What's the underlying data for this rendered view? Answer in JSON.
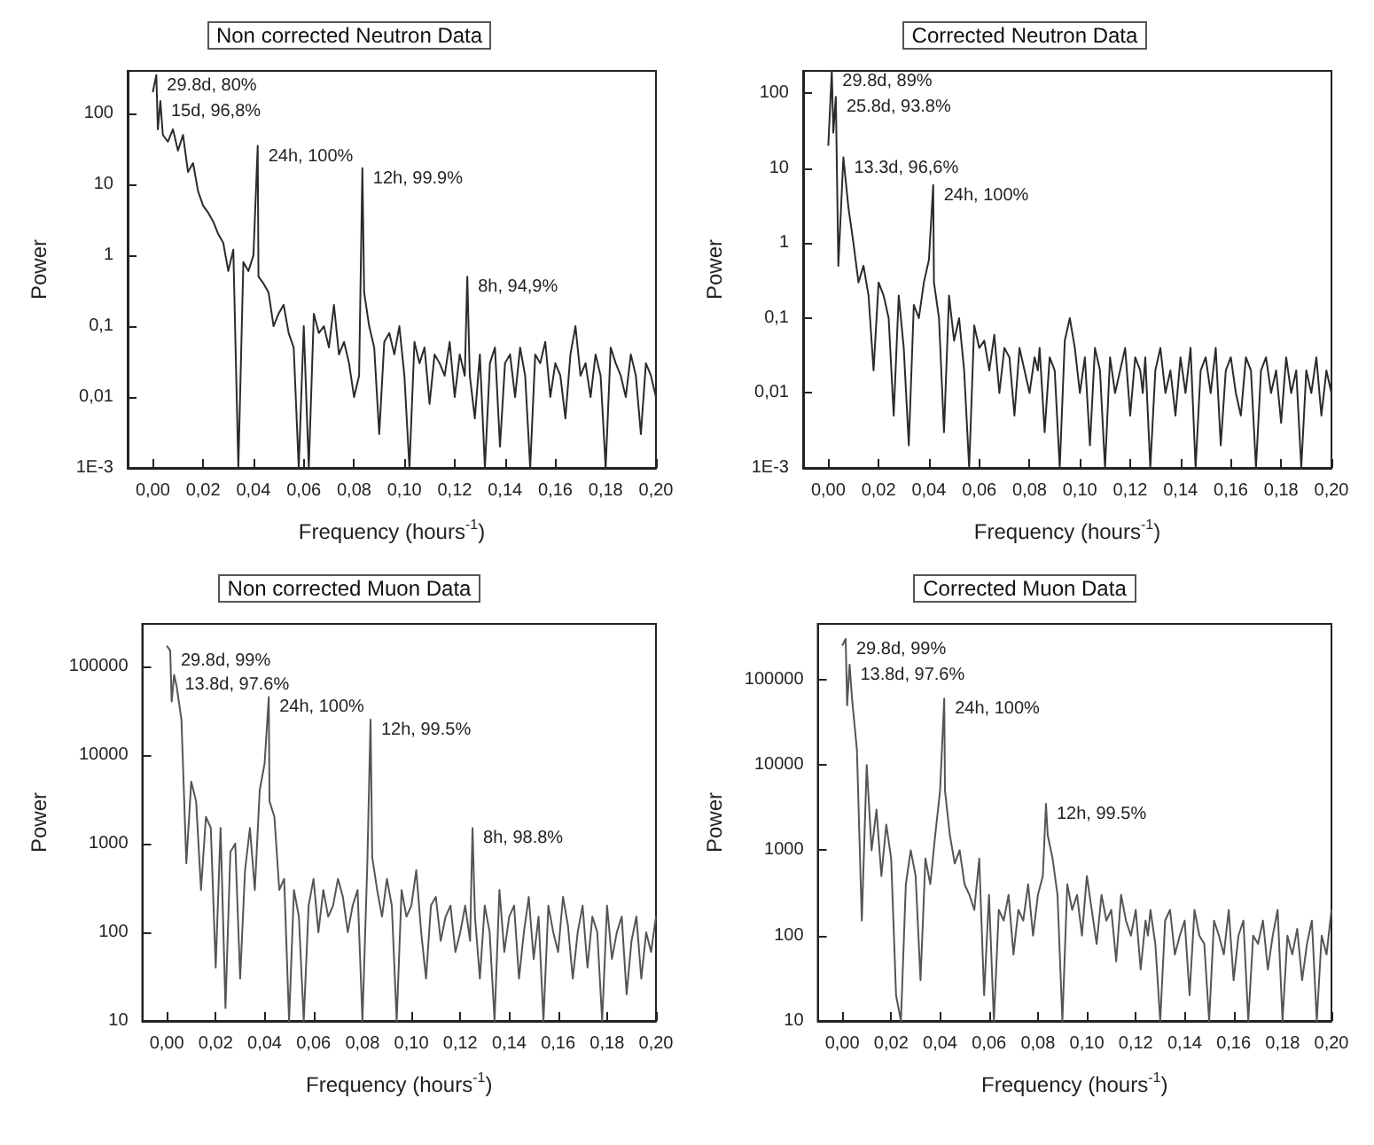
{
  "chart_data": [
    {
      "type": "line",
      "title": "Non corrected Neutron Data",
      "xlabel": "Frequency (hours$^{-1}$)",
      "ylabel": "Power",
      "log": "y",
      "marker": "none",
      "line_style": "solid",
      "grid": false,
      "xlim": [
        -0.01,
        0.2
      ],
      "ylim": [
        0.001,
        400
      ],
      "xticks": [
        {
          "value": 0,
          "label": "0,00"
        },
        {
          "value": 0.02,
          "label": "0,02"
        },
        {
          "value": 0.04,
          "label": "0,04"
        },
        {
          "value": 0.06,
          "label": "0,06"
        },
        {
          "value": 0.08,
          "label": "0,08"
        },
        {
          "value": 0.1,
          "label": "0,10"
        },
        {
          "value": 0.12,
          "label": "0,12"
        },
        {
          "value": 0.14,
          "label": "0,14"
        },
        {
          "value": 0.16,
          "label": "0,16"
        },
        {
          "value": 0.18,
          "label": "0,18"
        },
        {
          "value": 0.2,
          "label": "0,20"
        }
      ],
      "yticks": [
        {
          "value": 0.001,
          "label": "1E-3"
        },
        {
          "value": 0.01,
          "label": "0,01"
        },
        {
          "value": 0.1,
          "label": "0,1"
        },
        1,
        10,
        100
      ],
      "annotations": [
        {
          "text": "29.8d, 80%",
          "x": 0.0014,
          "y": 350
        },
        {
          "text": "15d, 96,8%",
          "x": 0.003,
          "y": 150
        },
        {
          "text": "24h, 100%",
          "x": 0.0417,
          "y": 35
        },
        {
          "text": "12h, 99.9%",
          "x": 0.0833,
          "y": 17
        },
        {
          "text": "8h, 94,9%",
          "x": 0.125,
          "y": 0.5
        }
      ],
      "x": [
        0,
        0.0014,
        0.002,
        0.003,
        0.004,
        0.006,
        0.008,
        0.01,
        0.012,
        0.014,
        0.016,
        0.018,
        0.02,
        0.022,
        0.024,
        0.026,
        0.028,
        0.03,
        0.032,
        0.034,
        0.036,
        0.038,
        0.04,
        0.0417,
        0.042,
        0.044,
        0.046,
        0.048,
        0.05,
        0.052,
        0.054,
        0.056,
        0.058,
        0.06,
        0.062,
        0.064,
        0.066,
        0.068,
        0.07,
        0.072,
        0.074,
        0.076,
        0.078,
        0.08,
        0.082,
        0.0833,
        0.084,
        0.086,
        0.088,
        0.09,
        0.092,
        0.094,
        0.096,
        0.098,
        0.1,
        0.102,
        0.104,
        0.106,
        0.108,
        0.11,
        0.112,
        0.114,
        0.116,
        0.118,
        0.12,
        0.122,
        0.124,
        0.125,
        0.126,
        0.128,
        0.13,
        0.132,
        0.134,
        0.136,
        0.138,
        0.14,
        0.142,
        0.144,
        0.146,
        0.148,
        0.15,
        0.152,
        0.154,
        0.156,
        0.158,
        0.16,
        0.162,
        0.164,
        0.166,
        0.168,
        0.17,
        0.172,
        0.174,
        0.176,
        0.178,
        0.18,
        0.182,
        0.184,
        0.186,
        0.188,
        0.19,
        0.192,
        0.194,
        0.196,
        0.198,
        0.2
      ],
      "series": [
        {
          "color": "#2b2b2b",
          "values": [
            200,
            350,
            60,
            150,
            50,
            40,
            60,
            30,
            50,
            15,
            20,
            8,
            5,
            4,
            3,
            2,
            1.5,
            0.6,
            1.2,
            0.001,
            0.8,
            0.6,
            1.0,
            35,
            0.5,
            0.4,
            0.3,
            0.1,
            0.15,
            0.2,
            0.08,
            0.05,
            0.001,
            0.1,
            0.001,
            0.15,
            0.08,
            0.1,
            0.05,
            0.2,
            0.04,
            0.06,
            0.03,
            0.01,
            0.02,
            17,
            0.3,
            0.1,
            0.05,
            0.003,
            0.06,
            0.08,
            0.04,
            0.1,
            0.02,
            0.001,
            0.06,
            0.03,
            0.05,
            0.008,
            0.04,
            0.03,
            0.02,
            0.06,
            0.01,
            0.04,
            0.02,
            0.5,
            0.02,
            0.005,
            0.04,
            0.001,
            0.03,
            0.05,
            0.002,
            0.03,
            0.04,
            0.01,
            0.05,
            0.02,
            0.001,
            0.04,
            0.03,
            0.06,
            0.01,
            0.03,
            0.02,
            0.005,
            0.04,
            0.1,
            0.02,
            0.03,
            0.01,
            0.04,
            0.02,
            0.001,
            0.05,
            0.03,
            0.02,
            0.01,
            0.04,
            0.02,
            0.003,
            0.03,
            0.02,
            0.01
          ]
        }
      ]
    },
    {
      "type": "line",
      "title": "Corrected Neutron Data",
      "xlabel": "Frequency (hours$^{-1}$)",
      "ylabel": "Power",
      "log": "y",
      "marker": "none",
      "line_style": "solid",
      "grid": false,
      "xlim": [
        -0.01,
        0.2
      ],
      "ylim": [
        0.001,
        200
      ],
      "xticks": [
        {
          "value": 0,
          "label": "0,00"
        },
        {
          "value": 0.02,
          "label": "0,02"
        },
        {
          "value": 0.04,
          "label": "0,04"
        },
        {
          "value": 0.06,
          "label": "0,06"
        },
        {
          "value": 0.08,
          "label": "0,08"
        },
        {
          "value": 0.1,
          "label": "0,10"
        },
        {
          "value": 0.12,
          "label": "0,12"
        },
        {
          "value": 0.14,
          "label": "0,14"
        },
        {
          "value": 0.16,
          "label": "0,16"
        },
        {
          "value": 0.18,
          "label": "0,18"
        },
        {
          "value": 0.2,
          "label": "0,20"
        }
      ],
      "yticks": [
        {
          "value": 0.001,
          "label": "1E-3"
        },
        {
          "value": 0.01,
          "label": "0,01"
        },
        {
          "value": 0.1,
          "label": "0,1"
        },
        1,
        10,
        100
      ],
      "annotations": [
        {
          "text": "29.8d, 89%",
          "x": 0.0014,
          "y": 200
        },
        {
          "text": "25.8d, 93.8%",
          "x": 0.003,
          "y": 90
        },
        {
          "text": "13.3d, 96,6%",
          "x": 0.006,
          "y": 14
        },
        {
          "text": "24h, 100%",
          "x": 0.0417,
          "y": 6
        }
      ],
      "x": [
        0,
        0.0014,
        0.002,
        0.003,
        0.004,
        0.006,
        0.008,
        0.01,
        0.012,
        0.014,
        0.016,
        0.018,
        0.02,
        0.022,
        0.024,
        0.026,
        0.028,
        0.03,
        0.032,
        0.034,
        0.036,
        0.038,
        0.04,
        0.0417,
        0.042,
        0.044,
        0.046,
        0.048,
        0.05,
        0.052,
        0.054,
        0.056,
        0.058,
        0.06,
        0.062,
        0.064,
        0.066,
        0.068,
        0.07,
        0.072,
        0.074,
        0.076,
        0.078,
        0.08,
        0.082,
        0.0833,
        0.084,
        0.086,
        0.088,
        0.09,
        0.092,
        0.094,
        0.096,
        0.098,
        0.1,
        0.102,
        0.104,
        0.106,
        0.108,
        0.11,
        0.112,
        0.114,
        0.116,
        0.118,
        0.12,
        0.122,
        0.124,
        0.125,
        0.126,
        0.128,
        0.13,
        0.132,
        0.134,
        0.136,
        0.138,
        0.14,
        0.142,
        0.144,
        0.146,
        0.148,
        0.15,
        0.152,
        0.154,
        0.156,
        0.158,
        0.16,
        0.162,
        0.164,
        0.166,
        0.168,
        0.17,
        0.172,
        0.174,
        0.176,
        0.178,
        0.18,
        0.182,
        0.184,
        0.186,
        0.188,
        0.19,
        0.192,
        0.194,
        0.196,
        0.198,
        0.2
      ],
      "series": [
        {
          "color": "#2b2b2b",
          "values": [
            20,
            200,
            30,
            90,
            0.5,
            14,
            3,
            1,
            0.3,
            0.5,
            0.2,
            0.02,
            0.3,
            0.2,
            0.1,
            0.005,
            0.2,
            0.04,
            0.002,
            0.15,
            0.1,
            0.3,
            0.6,
            6,
            0.3,
            0.1,
            0.003,
            0.2,
            0.05,
            0.1,
            0.02,
            0.001,
            0.08,
            0.04,
            0.05,
            0.02,
            0.06,
            0.01,
            0.04,
            0.03,
            0.005,
            0.04,
            0.02,
            0.01,
            0.03,
            0.02,
            0.04,
            0.003,
            0.03,
            0.02,
            0.001,
            0.05,
            0.1,
            0.04,
            0.01,
            0.03,
            0.002,
            0.04,
            0.02,
            0.001,
            0.03,
            0.01,
            0.02,
            0.04,
            0.005,
            0.03,
            0.02,
            0.01,
            0.03,
            0.001,
            0.02,
            0.04,
            0.01,
            0.02,
            0.005,
            0.03,
            0.01,
            0.04,
            0.001,
            0.02,
            0.03,
            0.01,
            0.04,
            0.002,
            0.02,
            0.03,
            0.01,
            0.005,
            0.03,
            0.02,
            0.001,
            0.02,
            0.03,
            0.01,
            0.02,
            0.004,
            0.03,
            0.01,
            0.02,
            0.001,
            0.02,
            0.01,
            0.03,
            0.005,
            0.02,
            0.01
          ]
        }
      ]
    },
    {
      "type": "line",
      "title": "Non corrected Muon Data",
      "xlabel": "Frequency (hours$^{-1}$)",
      "ylabel": "Power",
      "log": "y",
      "marker": "none",
      "line_style": "solid",
      "grid": false,
      "xlim": [
        -0.01,
        0.2
      ],
      "ylim": [
        10,
        300000
      ],
      "xticks": [
        {
          "value": 0,
          "label": "0,00"
        },
        {
          "value": 0.02,
          "label": "0,02"
        },
        {
          "value": 0.04,
          "label": "0,04"
        },
        {
          "value": 0.06,
          "label": "0,06"
        },
        {
          "value": 0.08,
          "label": "0,08"
        },
        {
          "value": 0.1,
          "label": "0,10"
        },
        {
          "value": 0.12,
          "label": "0,12"
        },
        {
          "value": 0.14,
          "label": "0,14"
        },
        {
          "value": 0.16,
          "label": "0,16"
        },
        {
          "value": 0.18,
          "label": "0,18"
        },
        {
          "value": 0.2,
          "label": "0,20"
        }
      ],
      "yticks": [
        10,
        100,
        1000,
        10000,
        100000
      ],
      "annotations": [
        {
          "text": "29.8d, 99%",
          "x": 0.0014,
          "y": 150000
        },
        {
          "text": "13.8d, 97.6%",
          "x": 0.003,
          "y": 80000
        },
        {
          "text": "24h, 100%",
          "x": 0.0417,
          "y": 45000
        },
        {
          "text": "12h, 99.5%",
          "x": 0.0833,
          "y": 25000
        },
        {
          "text": "8h, 98.8%",
          "x": 0.125,
          "y": 1500
        }
      ],
      "x": [
        0,
        0.0014,
        0.002,
        0.003,
        0.004,
        0.006,
        0.008,
        0.01,
        0.012,
        0.014,
        0.016,
        0.018,
        0.02,
        0.022,
        0.024,
        0.026,
        0.028,
        0.03,
        0.032,
        0.034,
        0.036,
        0.038,
        0.04,
        0.0417,
        0.042,
        0.044,
        0.046,
        0.048,
        0.05,
        0.052,
        0.054,
        0.056,
        0.058,
        0.06,
        0.062,
        0.064,
        0.066,
        0.068,
        0.07,
        0.072,
        0.074,
        0.076,
        0.078,
        0.08,
        0.082,
        0.0833,
        0.084,
        0.086,
        0.088,
        0.09,
        0.092,
        0.094,
        0.096,
        0.098,
        0.1,
        0.102,
        0.104,
        0.106,
        0.108,
        0.11,
        0.112,
        0.114,
        0.116,
        0.118,
        0.12,
        0.122,
        0.124,
        0.125,
        0.126,
        0.128,
        0.13,
        0.132,
        0.134,
        0.136,
        0.138,
        0.14,
        0.142,
        0.144,
        0.146,
        0.148,
        0.15,
        0.152,
        0.154,
        0.156,
        0.158,
        0.16,
        0.162,
        0.164,
        0.166,
        0.168,
        0.17,
        0.172,
        0.174,
        0.176,
        0.178,
        0.18,
        0.182,
        0.184,
        0.186,
        0.188,
        0.19,
        0.192,
        0.194,
        0.196,
        0.198,
        0.2
      ],
      "series": [
        {
          "color": "#555555",
          "values": [
            170000,
            150000,
            40000,
            80000,
            60000,
            25000,
            600,
            5000,
            3000,
            300,
            2000,
            1500,
            40,
            1500,
            14,
            800,
            1000,
            30,
            500,
            1500,
            300,
            4000,
            8000,
            45000,
            3000,
            2000,
            300,
            400,
            10,
            300,
            150,
            10,
            200,
            400,
            100,
            300,
            150,
            200,
            400,
            250,
            100,
            200,
            300,
            10,
            600,
            25000,
            700,
            300,
            150,
            400,
            200,
            10,
            300,
            150,
            200,
            500,
            100,
            30,
            200,
            250,
            80,
            150,
            200,
            60,
            100,
            200,
            80,
            1500,
            150,
            30,
            200,
            100,
            10,
            300,
            60,
            150,
            200,
            30,
            100,
            250,
            50,
            150,
            10,
            200,
            100,
            60,
            250,
            120,
            30,
            100,
            200,
            40,
            150,
            100,
            10,
            200,
            50,
            100,
            150,
            20,
            80,
            150,
            30,
            100,
            60,
            150
          ]
        }
      ]
    },
    {
      "type": "line",
      "title": "Corrected Muon Data",
      "xlabel": "Frequency (hours$^{-1}$)",
      "ylabel": "Power",
      "log": "y",
      "marker": "none",
      "line_style": "solid",
      "grid": false,
      "xlim": [
        -0.01,
        0.2
      ],
      "ylim": [
        10,
        450000
      ],
      "xticks": [
        {
          "value": 0,
          "label": "0,00"
        },
        {
          "value": 0.02,
          "label": "0,02"
        },
        {
          "value": 0.04,
          "label": "0,04"
        },
        {
          "value": 0.06,
          "label": "0,06"
        },
        {
          "value": 0.08,
          "label": "0,08"
        },
        {
          "value": 0.1,
          "label": "0,10"
        },
        {
          "value": 0.12,
          "label": "0,12"
        },
        {
          "value": 0.14,
          "label": "0,14"
        },
        {
          "value": 0.16,
          "label": "0,16"
        },
        {
          "value": 0.18,
          "label": "0,18"
        },
        {
          "value": 0.2,
          "label": "0,20"
        }
      ],
      "yticks": [
        10,
        100,
        1000,
        10000,
        100000
      ],
      "annotations": [
        {
          "text": "29.8d, 99%",
          "x": 0.0014,
          "y": 300000
        },
        {
          "text": "13.8d, 97.6%",
          "x": 0.003,
          "y": 150000
        },
        {
          "text": "24h, 100%",
          "x": 0.0417,
          "y": 60000
        },
        {
          "text": "12h, 99.5%",
          "x": 0.0833,
          "y": 3500
        }
      ],
      "x": [
        0,
        0.0014,
        0.002,
        0.003,
        0.004,
        0.006,
        0.008,
        0.01,
        0.012,
        0.014,
        0.016,
        0.018,
        0.02,
        0.022,
        0.024,
        0.026,
        0.028,
        0.03,
        0.032,
        0.034,
        0.036,
        0.038,
        0.04,
        0.0417,
        0.042,
        0.044,
        0.046,
        0.048,
        0.05,
        0.052,
        0.054,
        0.056,
        0.058,
        0.06,
        0.062,
        0.064,
        0.066,
        0.068,
        0.07,
        0.072,
        0.074,
        0.076,
        0.078,
        0.08,
        0.082,
        0.0833,
        0.084,
        0.086,
        0.088,
        0.09,
        0.092,
        0.094,
        0.096,
        0.098,
        0.1,
        0.102,
        0.104,
        0.106,
        0.108,
        0.11,
        0.112,
        0.114,
        0.116,
        0.118,
        0.12,
        0.122,
        0.124,
        0.125,
        0.126,
        0.128,
        0.13,
        0.132,
        0.134,
        0.136,
        0.138,
        0.14,
        0.142,
        0.144,
        0.146,
        0.148,
        0.15,
        0.152,
        0.154,
        0.156,
        0.158,
        0.16,
        0.162,
        0.164,
        0.166,
        0.168,
        0.17,
        0.172,
        0.174,
        0.176,
        0.178,
        0.18,
        0.182,
        0.184,
        0.186,
        0.188,
        0.19,
        0.192,
        0.194,
        0.196,
        0.198,
        0.2
      ],
      "series": [
        {
          "color": "#555555",
          "values": [
            250000,
            300000,
            50000,
            150000,
            60000,
            15000,
            150,
            10000,
            1000,
            3000,
            500,
            2000,
            800,
            20,
            10,
            400,
            1000,
            500,
            30,
            800,
            400,
            1500,
            5000,
            60000,
            5000,
            1500,
            700,
            1000,
            400,
            300,
            200,
            800,
            20,
            300,
            10,
            200,
            150,
            300,
            60,
            200,
            150,
            400,
            100,
            300,
            500,
            3500,
            1500,
            800,
            300,
            10,
            400,
            200,
            300,
            100,
            500,
            200,
            80,
            300,
            150,
            200,
            50,
            300,
            150,
            100,
            200,
            40,
            150,
            100,
            200,
            80,
            10,
            150,
            200,
            60,
            100,
            150,
            20,
            200,
            100,
            80,
            10,
            150,
            100,
            60,
            200,
            30,
            100,
            150,
            10,
            100,
            80,
            150,
            40,
            100,
            200,
            10,
            100,
            60,
            120,
            30,
            80,
            150,
            10,
            100,
            60,
            200
          ]
        }
      ]
    }
  ]
}
